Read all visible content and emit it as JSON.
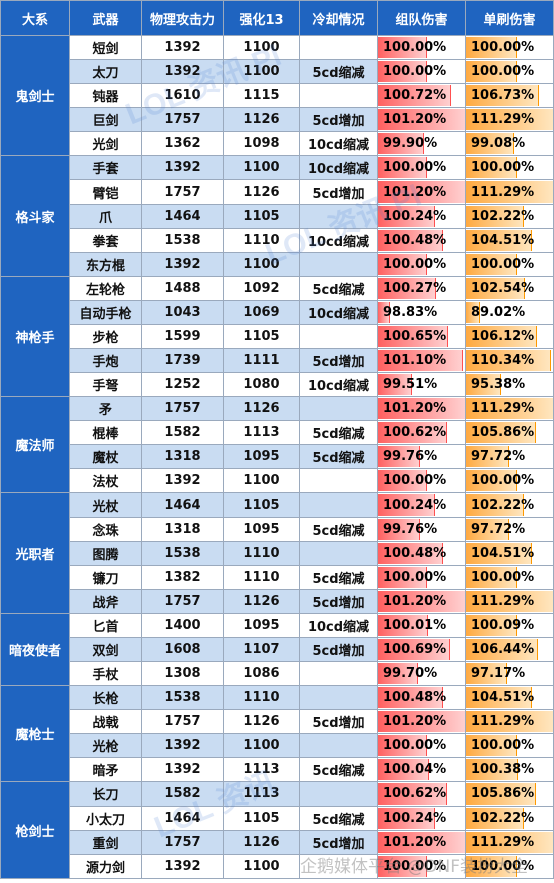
{
  "headers": [
    "大系",
    "武器",
    "物理攻击力",
    "强化13",
    "冷却情况",
    "组队伤害",
    "单刷伤害"
  ],
  "groups": [
    {
      "name": "鬼剑士",
      "rows": [
        {
          "weapon": "短剑",
          "atk": "1392",
          "enh": "1100",
          "cd": "",
          "team": "100.00%",
          "solo": "100.00%"
        },
        {
          "weapon": "太刀",
          "atk": "1392",
          "enh": "1100",
          "cd": "5cd缩减",
          "team": "100.00%",
          "solo": "100.00%"
        },
        {
          "weapon": "钝器",
          "atk": "1610",
          "enh": "1115",
          "cd": "",
          "team": "100.72%",
          "solo": "106.73%"
        },
        {
          "weapon": "巨剑",
          "atk": "1757",
          "enh": "1126",
          "cd": "5cd增加",
          "team": "101.20%",
          "solo": "111.29%"
        },
        {
          "weapon": "光剑",
          "atk": "1362",
          "enh": "1098",
          "cd": "10cd缩减",
          "team": "99.90%",
          "solo": "99.08%"
        }
      ]
    },
    {
      "name": "格斗家",
      "rows": [
        {
          "weapon": "手套",
          "atk": "1392",
          "enh": "1100",
          "cd": "10cd缩减",
          "team": "100.00%",
          "solo": "100.00%"
        },
        {
          "weapon": "臂铠",
          "atk": "1757",
          "enh": "1126",
          "cd": "5cd增加",
          "team": "101.20%",
          "solo": "111.29%"
        },
        {
          "weapon": "爪",
          "atk": "1464",
          "enh": "1105",
          "cd": "",
          "team": "100.24%",
          "solo": "102.22%"
        },
        {
          "weapon": "拳套",
          "atk": "1538",
          "enh": "1110",
          "cd": "10cd缩减",
          "team": "100.48%",
          "solo": "104.51%"
        },
        {
          "weapon": "东方棍",
          "atk": "1392",
          "enh": "1100",
          "cd": "",
          "team": "100.00%",
          "solo": "100.00%"
        }
      ]
    },
    {
      "name": "神枪手",
      "rows": [
        {
          "weapon": "左轮枪",
          "atk": "1488",
          "enh": "1092",
          "cd": "5cd缩减",
          "team": "100.27%",
          "solo": "102.54%"
        },
        {
          "weapon": "自动手枪",
          "atk": "1043",
          "enh": "1069",
          "cd": "10cd缩减",
          "team": "98.83%",
          "solo": "89.02%"
        },
        {
          "weapon": "步枪",
          "atk": "1599",
          "enh": "1105",
          "cd": "",
          "team": "100.65%",
          "solo": "106.12%"
        },
        {
          "weapon": "手炮",
          "atk": "1739",
          "enh": "1111",
          "cd": "5cd增加",
          "team": "101.10%",
          "solo": "110.34%"
        },
        {
          "weapon": "手弩",
          "atk": "1252",
          "enh": "1080",
          "cd": "10cd缩减",
          "team": "99.51%",
          "solo": "95.38%"
        }
      ]
    },
    {
      "name": "魔法师",
      "rows": [
        {
          "weapon": "矛",
          "atk": "1757",
          "enh": "1126",
          "cd": "",
          "team": "101.20%",
          "solo": "111.29%"
        },
        {
          "weapon": "棍棒",
          "atk": "1582",
          "enh": "1113",
          "cd": "5cd缩减",
          "team": "100.62%",
          "solo": "105.86%"
        },
        {
          "weapon": "魔杖",
          "atk": "1318",
          "enh": "1095",
          "cd": "5cd缩减",
          "team": "99.76%",
          "solo": "97.72%"
        },
        {
          "weapon": "法杖",
          "atk": "1392",
          "enh": "1100",
          "cd": "",
          "team": "100.00%",
          "solo": "100.00%"
        }
      ]
    },
    {
      "name": "光职者",
      "rows": [
        {
          "weapon": "光杖",
          "atk": "1464",
          "enh": "1105",
          "cd": "",
          "team": "100.24%",
          "solo": "102.22%"
        },
        {
          "weapon": "念珠",
          "atk": "1318",
          "enh": "1095",
          "cd": "5cd缩减",
          "team": "99.76%",
          "solo": "97.72%"
        },
        {
          "weapon": "图腾",
          "atk": "1538",
          "enh": "1110",
          "cd": "",
          "team": "100.48%",
          "solo": "104.51%"
        },
        {
          "weapon": "镰刀",
          "atk": "1382",
          "enh": "1110",
          "cd": "5cd缩减",
          "team": "100.00%",
          "solo": "100.00%"
        },
        {
          "weapon": "战斧",
          "atk": "1757",
          "enh": "1126",
          "cd": "5cd增加",
          "team": "101.20%",
          "solo": "111.29%"
        }
      ]
    },
    {
      "name": "暗夜使者",
      "rows": [
        {
          "weapon": "匕首",
          "atk": "1400",
          "enh": "1095",
          "cd": "10cd缩减",
          "team": "100.01%",
          "solo": "100.09%"
        },
        {
          "weapon": "双剑",
          "atk": "1608",
          "enh": "1107",
          "cd": "5cd增加",
          "team": "100.69%",
          "solo": "106.44%"
        },
        {
          "weapon": "手杖",
          "atk": "1308",
          "enh": "1086",
          "cd": "",
          "team": "99.70%",
          "solo": "97.17%"
        }
      ]
    },
    {
      "name": "魔枪士",
      "rows": [
        {
          "weapon": "长枪",
          "atk": "1538",
          "enh": "1110",
          "cd": "",
          "team": "100.48%",
          "solo": "104.51%"
        },
        {
          "weapon": "战戟",
          "atk": "1757",
          "enh": "1126",
          "cd": "5cd增加",
          "team": "101.20%",
          "solo": "111.29%"
        },
        {
          "weapon": "光枪",
          "atk": "1392",
          "enh": "1100",
          "cd": "",
          "team": "100.00%",
          "solo": "100.00%"
        },
        {
          "weapon": "暗矛",
          "atk": "1392",
          "enh": "1113",
          "cd": "5cd缩减",
          "team": "100.04%",
          "solo": "100.38%"
        }
      ]
    },
    {
      "name": "枪剑士",
      "rows": [
        {
          "weapon": "长刀",
          "atk": "1582",
          "enh": "1113",
          "cd": "",
          "team": "100.62%",
          "solo": "105.86%"
        },
        {
          "weapon": "小太刀",
          "atk": "1464",
          "enh": "1105",
          "cd": "5cd缩减",
          "team": "100.24%",
          "solo": "102.22%"
        },
        {
          "weapon": "重剑",
          "atk": "1757",
          "enh": "1126",
          "cd": "5cd增加",
          "team": "101.20%",
          "solo": "111.29%"
        },
        {
          "weapon": "源力剑",
          "atk": "1392",
          "enh": "1100",
          "cd": "",
          "team": "100.00%",
          "solo": "100.00%"
        }
      ]
    }
  ],
  "bar_scale": {
    "team_min": 98.5,
    "team_max": 101.2,
    "solo_min": 85.0,
    "solo_max": 111.29
  },
  "colors": {
    "header": "#1f64c0",
    "band": "#c9dcf2",
    "team_bar": "#ff6060",
    "solo_bar": "#ffa940"
  },
  "footer_watermark": "企鹅媒体平台 @DNF装扮大全"
}
